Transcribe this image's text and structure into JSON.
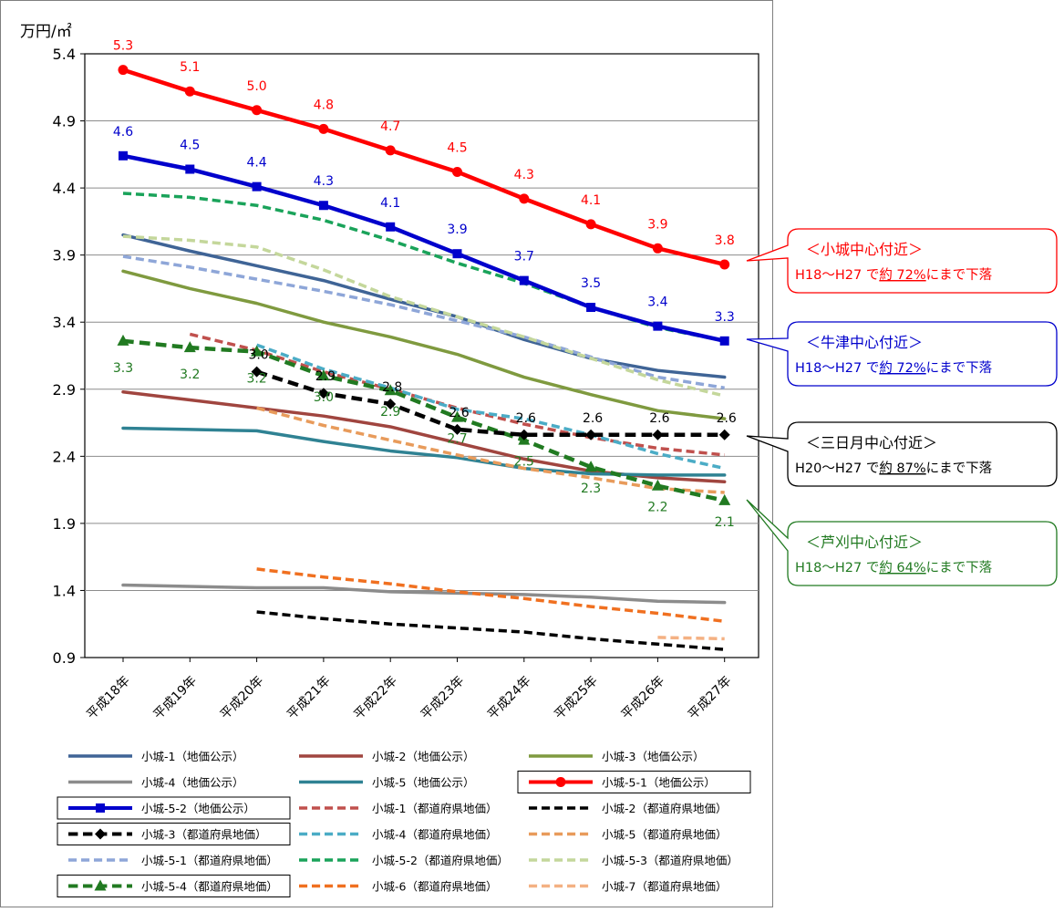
{
  "chart_data": {
    "type": "line",
    "y_unit_label": "万円/㎡",
    "categories": [
      "平成18年",
      "平成19年",
      "平成20年",
      "平成21年",
      "平成22年",
      "平成23年",
      "平成24年",
      "平成25年",
      "平成26年",
      "平成27年"
    ],
    "ylim": [
      0.9,
      5.4
    ],
    "yticks": [
      0.9,
      1.4,
      1.9,
      2.4,
      2.9,
      3.4,
      3.9,
      4.4,
      4.9,
      5.4
    ],
    "ytick_labels": [
      "0.9",
      "1.4",
      "1.9",
      "2.4",
      "2.9",
      "3.4",
      "3.9",
      "4.4",
      "4.9",
      "5.4"
    ],
    "grid": true,
    "legend_position": "bottom",
    "series": [
      {
        "name": "小城-1（地価公示）",
        "color": "#3f6496",
        "dash": "solid",
        "marker": "none",
        "boxed": false,
        "values": [
          4.05,
          3.93,
          3.82,
          3.71,
          3.57,
          3.44,
          3.27,
          3.13,
          3.04,
          2.99
        ]
      },
      {
        "name": "小城-2（地価公示）",
        "color": "#a0453f",
        "dash": "solid",
        "marker": "none",
        "boxed": false,
        "values": [
          2.88,
          2.82,
          2.76,
          2.7,
          2.62,
          2.5,
          2.38,
          2.29,
          2.24,
          2.21
        ]
      },
      {
        "name": "小城-3（地価公示）",
        "color": "#7f9a3f",
        "dash": "solid",
        "marker": "none",
        "boxed": false,
        "values": [
          3.78,
          3.65,
          3.54,
          3.4,
          3.29,
          3.16,
          2.99,
          2.86,
          2.74,
          2.68
        ]
      },
      {
        "name": "小城-4（地価公示）",
        "color": "#8c8c8c",
        "dash": "solid",
        "marker": "none",
        "boxed": false,
        "values": [
          1.44,
          1.43,
          1.42,
          1.42,
          1.39,
          1.38,
          1.37,
          1.35,
          1.32,
          1.31
        ]
      },
      {
        "name": "小城-5（地価公示）",
        "color": "#2f8293",
        "dash": "solid",
        "marker": "none",
        "boxed": false,
        "values": [
          2.61,
          2.6,
          2.59,
          2.51,
          2.44,
          2.39,
          2.31,
          2.27,
          2.26,
          2.26
        ]
      },
      {
        "name": "小城-5-1（地価公示）",
        "color": "#ff0000",
        "dash": "solid",
        "marker": "circle",
        "boxed": true,
        "values": [
          5.28,
          5.12,
          4.98,
          4.84,
          4.68,
          4.52,
          4.32,
          4.13,
          3.95,
          3.83
        ]
      },
      {
        "name": "小城-5-2（地価公示）",
        "color": "#0000cc",
        "dash": "solid",
        "marker": "square",
        "boxed": true,
        "values": [
          4.64,
          4.54,
          4.41,
          4.27,
          4.11,
          3.91,
          3.71,
          3.51,
          3.37,
          3.26
        ]
      },
      {
        "name": "小城-1（都道府県地価）",
        "color": "#c0504d",
        "dash": "dash",
        "marker": "none",
        "boxed": false,
        "values": [
          null,
          3.31,
          3.19,
          3.03,
          2.9,
          2.76,
          2.64,
          2.54,
          2.46,
          2.41
        ]
      },
      {
        "name": "小城-2（都道府県地価）",
        "color": "#000000",
        "dash": "dash",
        "marker": "none",
        "boxed": false,
        "values": [
          null,
          null,
          1.24,
          1.19,
          1.15,
          1.12,
          1.09,
          1.04,
          1.0,
          0.96
        ]
      },
      {
        "name": "小城-3（都道府県地価）",
        "color": "#000000",
        "dash": "dash",
        "marker": "diamond",
        "boxed": true,
        "values": [
          null,
          null,
          3.03,
          2.87,
          2.79,
          2.6,
          2.56,
          2.56,
          2.56,
          2.56
        ]
      },
      {
        "name": "小城-4（都道府県地価）",
        "color": "#4bacc6",
        "dash": "dash",
        "marker": "none",
        "boxed": false,
        "values": [
          null,
          null,
          3.23,
          3.05,
          2.91,
          2.75,
          2.68,
          2.56,
          2.42,
          2.31
        ]
      },
      {
        "name": "小城-5（都道府県地価）",
        "color": "#e89b5b",
        "dash": "dash",
        "marker": "none",
        "boxed": false,
        "values": [
          null,
          null,
          2.76,
          2.63,
          2.52,
          2.41,
          2.31,
          2.24,
          2.16,
          2.13
        ]
      },
      {
        "name": "小城-5-1（都道府県地価）",
        "color": "#8ea6d8",
        "dash": "dash",
        "marker": "none",
        "boxed": false,
        "values": [
          3.89,
          3.81,
          3.72,
          3.63,
          3.53,
          3.41,
          3.29,
          3.14,
          2.99,
          2.91
        ]
      },
      {
        "name": "小城-5-2（都道府県地価）",
        "color": "#1aa35a",
        "dash": "dash",
        "marker": "none",
        "boxed": false,
        "values": [
          4.36,
          4.33,
          4.27,
          4.16,
          4.01,
          3.84,
          3.69,
          3.51,
          3.36,
          3.26
        ]
      },
      {
        "name": "小城-5-3（都道府県地価）",
        "color": "#c4d79b",
        "dash": "dash",
        "marker": "none",
        "boxed": false,
        "values": [
          4.04,
          4.01,
          3.96,
          3.79,
          3.59,
          3.44,
          3.29,
          3.13,
          2.97,
          2.85
        ]
      },
      {
        "name": "小城-5-4（都道府県地価）",
        "color": "#217a21",
        "dash": "dash",
        "marker": "triangle",
        "boxed": true,
        "values": [
          3.26,
          3.21,
          3.18,
          3.0,
          2.89,
          2.69,
          2.52,
          2.32,
          2.18,
          2.07
        ]
      },
      {
        "name": "小城-6（都道府県地価）",
        "color": "#f07020",
        "dash": "dash",
        "marker": "none",
        "boxed": false,
        "values": [
          null,
          null,
          1.56,
          1.5,
          1.45,
          1.39,
          1.34,
          1.28,
          1.23,
          1.17
        ]
      },
      {
        "name": "小城-7（都道府県地価）",
        "color": "#f4b183",
        "dash": "dash",
        "marker": "none",
        "boxed": false,
        "values": [
          null,
          null,
          null,
          null,
          null,
          null,
          null,
          null,
          1.05,
          1.04
        ]
      }
    ],
    "data_labels": [
      {
        "series": 5,
        "color": "#ff0000",
        "labels": [
          "5.3",
          "5.1",
          "5.0",
          "4.8",
          "4.7",
          "4.5",
          "4.3",
          "4.1",
          "3.9",
          "3.8"
        ]
      },
      {
        "series": 6,
        "color": "#0000cc",
        "labels": [
          "4.6",
          "4.5",
          "4.4",
          "4.3",
          "4.1",
          "3.9",
          "3.7",
          "3.5",
          "3.4",
          "3.3"
        ]
      },
      {
        "series": 9,
        "color": "#000000",
        "labels": [
          null,
          null,
          "3.0",
          "2.9",
          "2.8",
          "2.6",
          "2.6",
          "2.6",
          "2.6",
          "2.6"
        ]
      },
      {
        "series": 15,
        "color": "#217a21",
        "labels": [
          "3.3",
          "3.2",
          "3.2",
          "3.0",
          "2.9",
          "2.7",
          "2.5",
          "2.3",
          "2.2",
          "2.1"
        ]
      }
    ],
    "callouts": [
      {
        "title": "＜小城中心付近＞",
        "line_pre": "H18～H27 で",
        "line_em": "約 72%",
        "line_post": "にまで下落",
        "color": "#ff0000",
        "series": 5
      },
      {
        "title": "＜牛津中心付近＞",
        "line_pre": "H18～H27 で",
        "line_em": "約 72%",
        "line_post": "にまで下落",
        "color": "#0000cc",
        "series": 6
      },
      {
        "title": "＜三日月中心付近＞",
        "line_pre": "H20～H27 で",
        "line_em": "約 87%",
        "line_post": "にまで下落",
        "color": "#000000",
        "series": 9
      },
      {
        "title": "＜芦刈中心付近＞",
        "line_pre": "H18～H27 で",
        "line_em": "約 64%",
        "line_post": "にまで下落",
        "color": "#217a21",
        "series": 15
      }
    ]
  }
}
